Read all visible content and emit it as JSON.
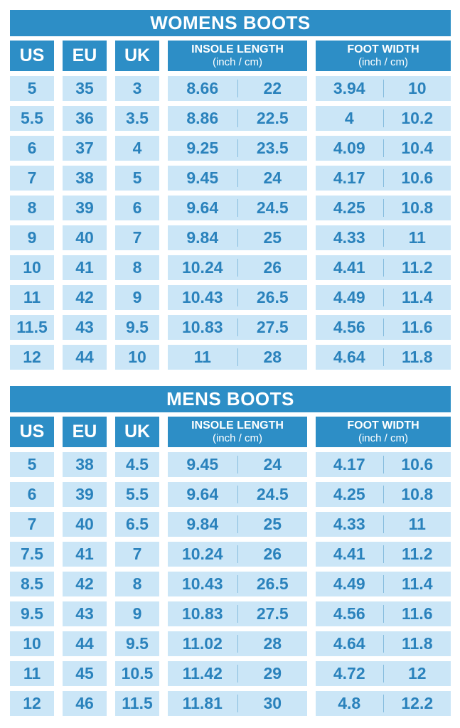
{
  "colors": {
    "header_blue": "#2D8EC6",
    "cell_background": "#CBE6F7",
    "cell_text": "#2A82BC",
    "divider_blue": "#85BCDE",
    "page_background": "#FFFFFF",
    "header_text": "#FFFFFF"
  },
  "chart_data": [
    {
      "type": "table",
      "title": "WOMENS BOOTS",
      "headers": {
        "us": "US",
        "eu": "EU",
        "uk": "UK",
        "insole_title": "INSOLE LENGTH",
        "insole_units": "(inch / cm)",
        "foot_title": "FOOT WIDTH",
        "foot_units": "(inch / cm)"
      },
      "rows": [
        {
          "us": "5",
          "eu": "35",
          "uk": "3",
          "insole_inch": "8.66",
          "insole_cm": "22",
          "foot_inch": "3.94",
          "foot_cm": "10"
        },
        {
          "us": "5.5",
          "eu": "36",
          "uk": "3.5",
          "insole_inch": "8.86",
          "insole_cm": "22.5",
          "foot_inch": "4",
          "foot_cm": "10.2"
        },
        {
          "us": "6",
          "eu": "37",
          "uk": "4",
          "insole_inch": "9.25",
          "insole_cm": "23.5",
          "foot_inch": "4.09",
          "foot_cm": "10.4"
        },
        {
          "us": "7",
          "eu": "38",
          "uk": "5",
          "insole_inch": "9.45",
          "insole_cm": "24",
          "foot_inch": "4.17",
          "foot_cm": "10.6"
        },
        {
          "us": "8",
          "eu": "39",
          "uk": "6",
          "insole_inch": "9.64",
          "insole_cm": "24.5",
          "foot_inch": "4.25",
          "foot_cm": "10.8"
        },
        {
          "us": "9",
          "eu": "40",
          "uk": "7",
          "insole_inch": "9.84",
          "insole_cm": "25",
          "foot_inch": "4.33",
          "foot_cm": "11"
        },
        {
          "us": "10",
          "eu": "41",
          "uk": "8",
          "insole_inch": "10.24",
          "insole_cm": "26",
          "foot_inch": "4.41",
          "foot_cm": "11.2"
        },
        {
          "us": "11",
          "eu": "42",
          "uk": "9",
          "insole_inch": "10.43",
          "insole_cm": "26.5",
          "foot_inch": "4.49",
          "foot_cm": "11.4"
        },
        {
          "us": "11.5",
          "eu": "43",
          "uk": "9.5",
          "insole_inch": "10.83",
          "insole_cm": "27.5",
          "foot_inch": "4.56",
          "foot_cm": "11.6"
        },
        {
          "us": "12",
          "eu": "44",
          "uk": "10",
          "insole_inch": "11",
          "insole_cm": "28",
          "foot_inch": "4.64",
          "foot_cm": "11.8"
        }
      ]
    },
    {
      "type": "table",
      "title": "MENS BOOTS",
      "headers": {
        "us": "US",
        "eu": "EU",
        "uk": "UK",
        "insole_title": "INSOLE LENGTH",
        "insole_units": "(inch / cm)",
        "foot_title": "FOOT WIDTH",
        "foot_units": "(inch / cm)"
      },
      "rows": [
        {
          "us": "5",
          "eu": "38",
          "uk": "4.5",
          "insole_inch": "9.45",
          "insole_cm": "24",
          "foot_inch": "4.17",
          "foot_cm": "10.6"
        },
        {
          "us": "6",
          "eu": "39",
          "uk": "5.5",
          "insole_inch": "9.64",
          "insole_cm": "24.5",
          "foot_inch": "4.25",
          "foot_cm": "10.8"
        },
        {
          "us": "7",
          "eu": "40",
          "uk": "6.5",
          "insole_inch": "9.84",
          "insole_cm": "25",
          "foot_inch": "4.33",
          "foot_cm": "11"
        },
        {
          "us": "7.5",
          "eu": "41",
          "uk": "7",
          "insole_inch": "10.24",
          "insole_cm": "26",
          "foot_inch": "4.41",
          "foot_cm": "11.2"
        },
        {
          "us": "8.5",
          "eu": "42",
          "uk": "8",
          "insole_inch": "10.43",
          "insole_cm": "26.5",
          "foot_inch": "4.49",
          "foot_cm": "11.4"
        },
        {
          "us": "9.5",
          "eu": "43",
          "uk": "9",
          "insole_inch": "10.83",
          "insole_cm": "27.5",
          "foot_inch": "4.56",
          "foot_cm": "11.6"
        },
        {
          "us": "10",
          "eu": "44",
          "uk": "9.5",
          "insole_inch": "11.02",
          "insole_cm": "28",
          "foot_inch": "4.64",
          "foot_cm": "11.8"
        },
        {
          "us": "11",
          "eu": "45",
          "uk": "10.5",
          "insole_inch": "11.42",
          "insole_cm": "29",
          "foot_inch": "4.72",
          "foot_cm": "12"
        },
        {
          "us": "12",
          "eu": "46",
          "uk": "11.5",
          "insole_inch": "11.81",
          "insole_cm": "30",
          "foot_inch": "4.8",
          "foot_cm": "12.2"
        }
      ]
    }
  ]
}
